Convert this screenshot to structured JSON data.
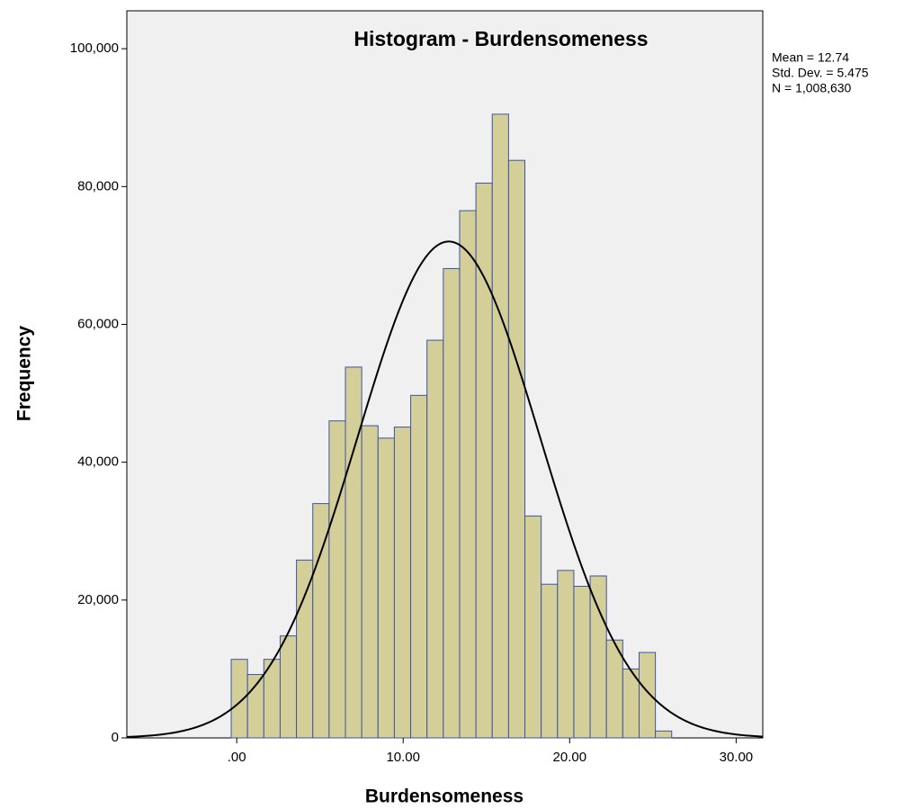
{
  "chart_data": {
    "type": "histogram",
    "title": "Histogram - Burdensomeness",
    "x_label": "Burdensomeness",
    "y_label": "Frequency",
    "annotations": [
      "Mean = 12.74",
      "Std. Dev. = 5.475",
      "N = 1,008,630"
    ],
    "bins": [
      -0.33,
      0.65,
      1.63,
      2.61,
      3.59,
      4.57,
      5.55,
      6.53,
      7.51,
      8.49,
      9.47,
      10.45,
      11.43,
      12.41,
      13.39,
      14.37,
      15.35,
      16.33,
      17.31,
      18.29,
      19.27,
      20.25,
      21.23,
      22.21,
      23.19,
      24.17,
      25.15,
      26.13
    ],
    "counts": [
      11400,
      9200,
      11400,
      14800,
      25800,
      34000,
      46000,
      53800,
      45300,
      43500,
      45100,
      49700,
      57700,
      68100,
      76500,
      80500,
      90500,
      83800,
      32200,
      22300,
      24300,
      22000,
      23500,
      14200,
      10000,
      12400,
      1000
    ],
    "color": "#d4cf98",
    "edge_color": "#3e54a3",
    "normal_curve": {
      "mean": 12.74,
      "sd": 5.475,
      "n": 1008630,
      "color": "#000000"
    },
    "xlim": [
      -6.6,
      31.6
    ],
    "ylim": [
      0,
      105500
    ],
    "xticks": [
      {
        "value": 0,
        "label": ".00"
      },
      {
        "value": 10,
        "label": "10.00"
      },
      {
        "value": 20,
        "label": "20.00"
      },
      {
        "value": 30,
        "label": "30.00"
      }
    ],
    "yticks": [
      0,
      {
        "value": 20000,
        "label": "20,000"
      },
      {
        "value": 40000,
        "label": "40,000"
      },
      {
        "value": 60000,
        "label": "60,000"
      },
      {
        "value": 80000,
        "label": "80,000"
      },
      {
        "value": 100000,
        "label": "100,000"
      }
    ]
  }
}
